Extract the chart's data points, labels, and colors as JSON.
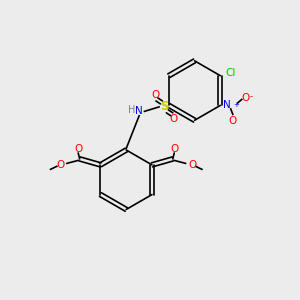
{
  "bg_color": "#ececec",
  "bond_color": "#000000",
  "ring_color": "#000000",
  "colors": {
    "O": "#ff0000",
    "N": "#0000ff",
    "S": "#cccc00",
    "Cl": "#00cc00",
    "C": "#000000",
    "H": "#808080"
  },
  "font_size": 7.5,
  "line_width": 1.2
}
